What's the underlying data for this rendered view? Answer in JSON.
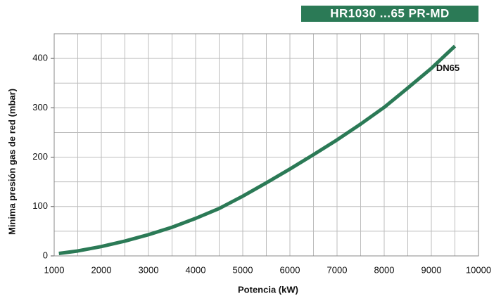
{
  "chart_data": {
    "type": "line",
    "title": "HR1030 ...65 PR-MD",
    "xlabel": "Potencia (kW)",
    "ylabel": "Minima presión gas de red (mbar)",
    "x": [
      1100,
      1500,
      2000,
      2500,
      3000,
      3500,
      4000,
      4500,
      5000,
      5500,
      6000,
      6500,
      7000,
      7500,
      8000,
      8500,
      9000,
      9500
    ],
    "series": [
      {
        "name": "DN65",
        "color": "#2b7a56",
        "values": [
          5,
          10,
          19,
          30,
          43,
          58,
          76,
          96,
          121,
          148,
          176,
          205,
          235,
          267,
          301,
          340,
          380,
          425
        ]
      }
    ],
    "xlim": [
      1000,
      10000
    ],
    "ylim": [
      0,
      450
    ],
    "xticks": [
      1000,
      2000,
      3000,
      4000,
      5000,
      6000,
      7000,
      8000,
      9000,
      10000
    ],
    "yticks": [
      0,
      100,
      200,
      300,
      400
    ],
    "x_minor_ticks": [
      1500,
      2500,
      3500,
      4500,
      5500,
      6500,
      7500,
      8500,
      9500
    ],
    "y_minor_ticks": [
      50,
      150,
      250,
      350,
      450
    ],
    "grid": true
  }
}
